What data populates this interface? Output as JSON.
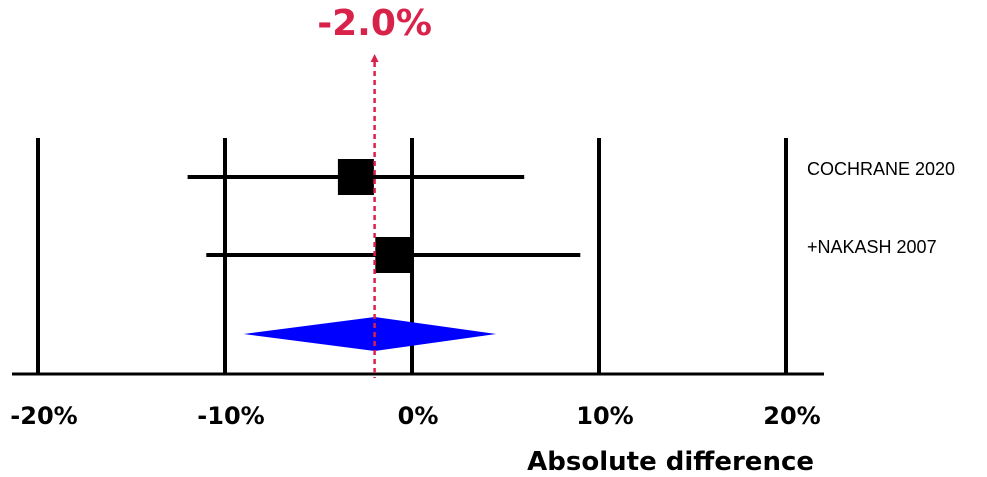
{
  "chart_data": {
    "type": "forest",
    "xlabel": "Absolute difference",
    "xlim": [
      -20,
      20
    ],
    "x_ticks": [
      -20,
      -10,
      0,
      10,
      20
    ],
    "x_tick_labels": [
      "-20%",
      "-10%",
      "0%",
      "10%",
      "20%"
    ],
    "grid": "vertical lines at ticks",
    "studies": [
      {
        "label": "COCHRANE 2020",
        "estimate": -3.0,
        "ci_low": -12.0,
        "ci_high": 6.0
      },
      {
        "label": "+NAKASH 2007",
        "estimate": -1.0,
        "ci_low": -11.0,
        "ci_high": 9.0
      }
    ],
    "pooled": {
      "estimate": -2.0,
      "ci_low": -9.0,
      "ci_high": 4.5
    },
    "pooled_label": "-2.0%",
    "colors": {
      "marker": "#000000",
      "diamond": "#0000ff",
      "pooled_line": "#d9224a"
    }
  }
}
